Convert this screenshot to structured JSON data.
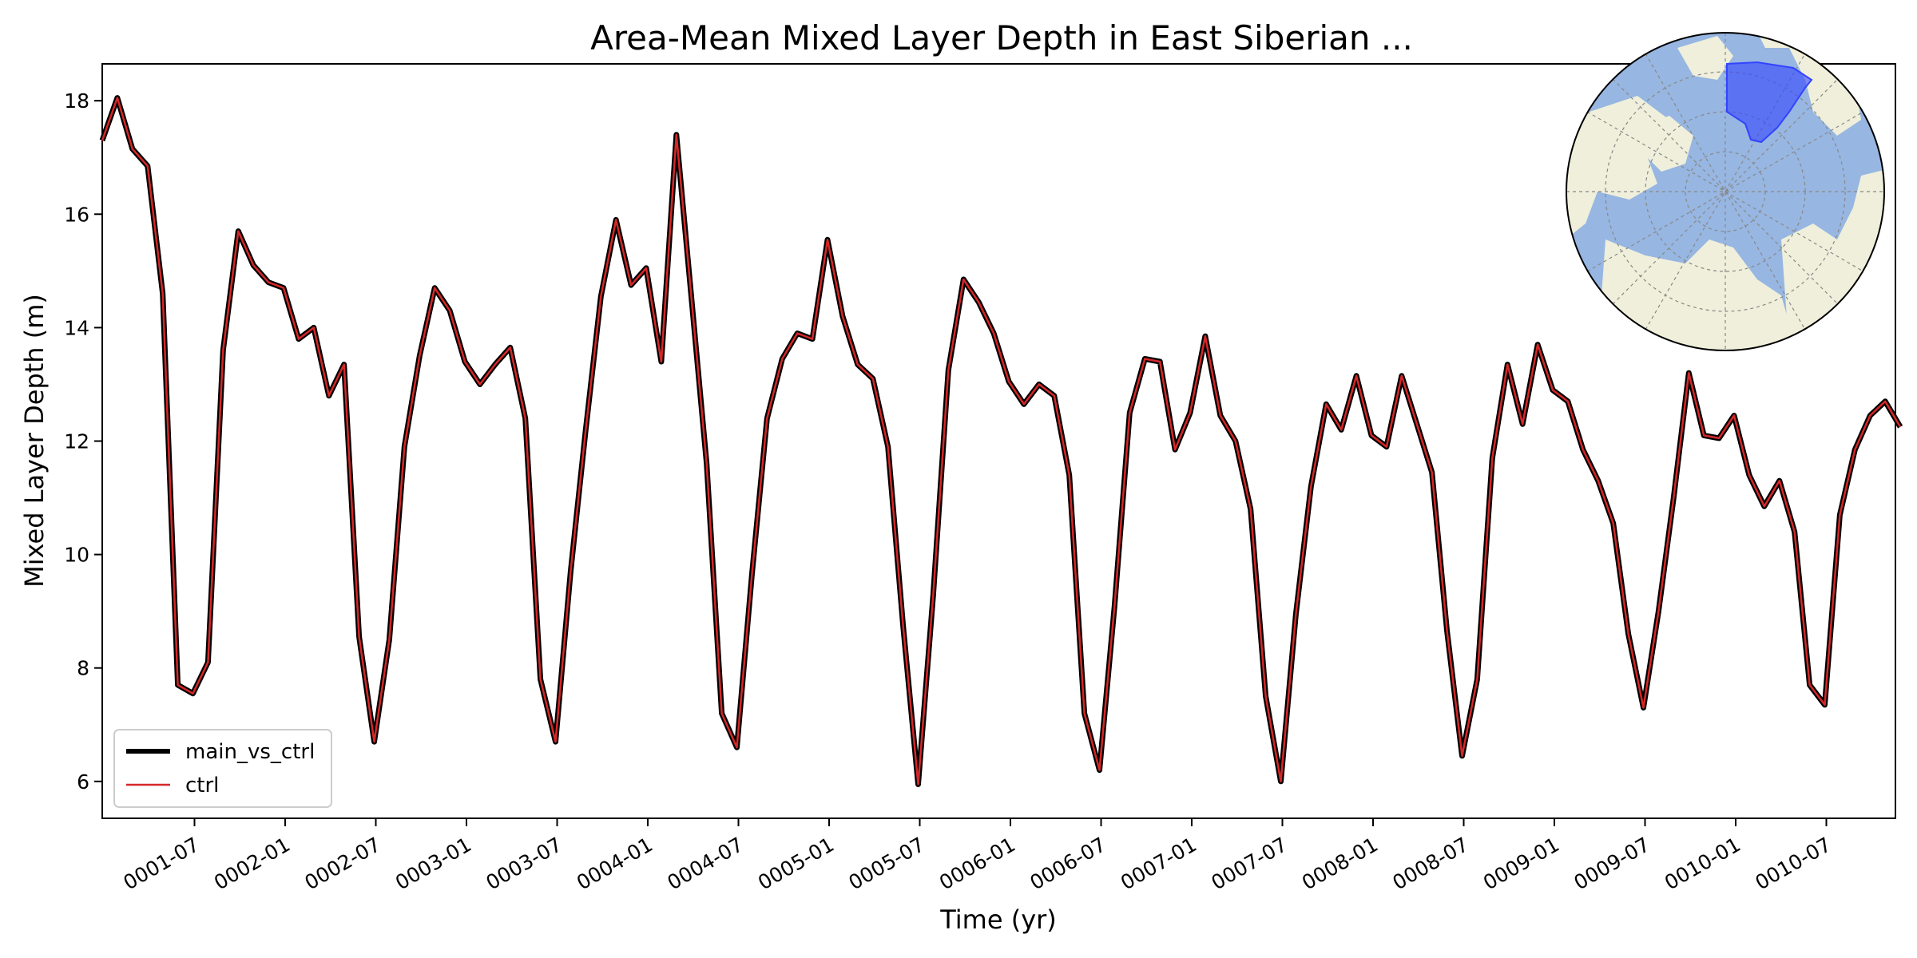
{
  "chart_data": {
    "type": "line",
    "title": "Area-Mean Mixed Layer Depth in East Siberian ...",
    "xlabel": "Time (yr)",
    "ylabel": "Mixed Layer Depth (m)",
    "ylim": [
      5.35,
      18.65
    ],
    "x_tick_labels": [
      "0001-07",
      "0002-01",
      "0002-07",
      "0003-01",
      "0003-07",
      "0004-01",
      "0004-07",
      "0005-01",
      "0005-07",
      "0006-01",
      "0006-07",
      "0007-01",
      "0007-07",
      "0008-01",
      "0008-07",
      "0009-01",
      "0009-07",
      "0010-01",
      "0010-07"
    ],
    "y_ticks": [
      6,
      8,
      10,
      12,
      14,
      16,
      18
    ],
    "legend": {
      "placement": "lower-left",
      "entries": [
        "main_vs_ctrl",
        "ctrl"
      ]
    },
    "inset": {
      "type": "polar-map",
      "placement": "top-right",
      "description": "North polar map with highlighted East Siberian region"
    },
    "series": [
      {
        "name": "main_vs_ctrl",
        "color": "#000000",
        "values": [
          17.3,
          18.05,
          17.15,
          16.85,
          14.6,
          7.7,
          7.55,
          8.1,
          13.6,
          15.7,
          15.1,
          14.8,
          14.7,
          13.8,
          14.0,
          12.8,
          13.35,
          8.55,
          6.7,
          8.5,
          11.9,
          13.5,
          14.7,
          14.3,
          13.4,
          13.0,
          13.35,
          13.65,
          12.4,
          7.8,
          6.7,
          9.7,
          12.2,
          14.55,
          15.9,
          14.75,
          15.05,
          13.4,
          17.4,
          14.5,
          11.6,
          7.2,
          6.6,
          9.65,
          12.4,
          13.45,
          13.9,
          13.8,
          15.55,
          14.2,
          13.35,
          13.1,
          11.9,
          8.75,
          5.95,
          9.3,
          13.25,
          14.85,
          14.45,
          13.9,
          13.05,
          12.65,
          13.0,
          12.8,
          11.4,
          7.2,
          6.2,
          9.1,
          12.5,
          13.45,
          13.4,
          11.85,
          12.5,
          13.85,
          12.45,
          12.0,
          10.8,
          7.5,
          6.0,
          8.95,
          11.2,
          12.65,
          12.2,
          13.15,
          12.1,
          11.9,
          13.15,
          12.3,
          11.45,
          8.65,
          6.45,
          7.8,
          11.7,
          13.35,
          12.3,
          13.7,
          12.9,
          12.7,
          11.85,
          11.3,
          10.55,
          8.6,
          7.3,
          9.0,
          11.0,
          13.2,
          12.1,
          12.05,
          12.45,
          11.4,
          10.85,
          11.3,
          10.4,
          7.7,
          7.35,
          10.7,
          11.85,
          12.45,
          12.7,
          12.25
        ]
      },
      {
        "name": "ctrl",
        "color": "#d62728",
        "values": [
          17.3,
          18.05,
          17.15,
          16.85,
          14.6,
          7.7,
          7.55,
          8.1,
          13.6,
          15.7,
          15.1,
          14.8,
          14.7,
          13.8,
          14.0,
          12.8,
          13.35,
          8.55,
          6.7,
          8.5,
          11.9,
          13.5,
          14.7,
          14.3,
          13.4,
          13.0,
          13.35,
          13.65,
          12.4,
          7.8,
          6.7,
          9.7,
          12.2,
          14.55,
          15.9,
          14.75,
          15.05,
          13.4,
          17.4,
          14.5,
          11.6,
          7.2,
          6.6,
          9.65,
          12.4,
          13.45,
          13.9,
          13.8,
          15.55,
          14.2,
          13.35,
          13.1,
          11.9,
          8.75,
          5.95,
          9.3,
          13.25,
          14.85,
          14.45,
          13.9,
          13.05,
          12.65,
          13.0,
          12.8,
          11.4,
          7.2,
          6.2,
          9.1,
          12.5,
          13.45,
          13.4,
          11.85,
          12.5,
          13.85,
          12.45,
          12.0,
          10.8,
          7.5,
          6.0,
          8.95,
          11.2,
          12.65,
          12.2,
          13.15,
          12.1,
          11.9,
          13.15,
          12.3,
          11.45,
          8.65,
          6.45,
          7.8,
          11.7,
          13.35,
          12.3,
          13.7,
          12.9,
          12.7,
          11.85,
          11.3,
          10.55,
          8.6,
          7.3,
          9.0,
          11.0,
          13.2,
          12.1,
          12.05,
          12.45,
          11.4,
          10.85,
          11.3,
          10.4,
          7.7,
          7.35,
          10.7,
          11.85,
          12.45,
          12.7,
          12.25
        ]
      }
    ]
  },
  "colors": {
    "ocean": "#97b6e1",
    "land": "#efefdb",
    "region": "#3344ff"
  }
}
